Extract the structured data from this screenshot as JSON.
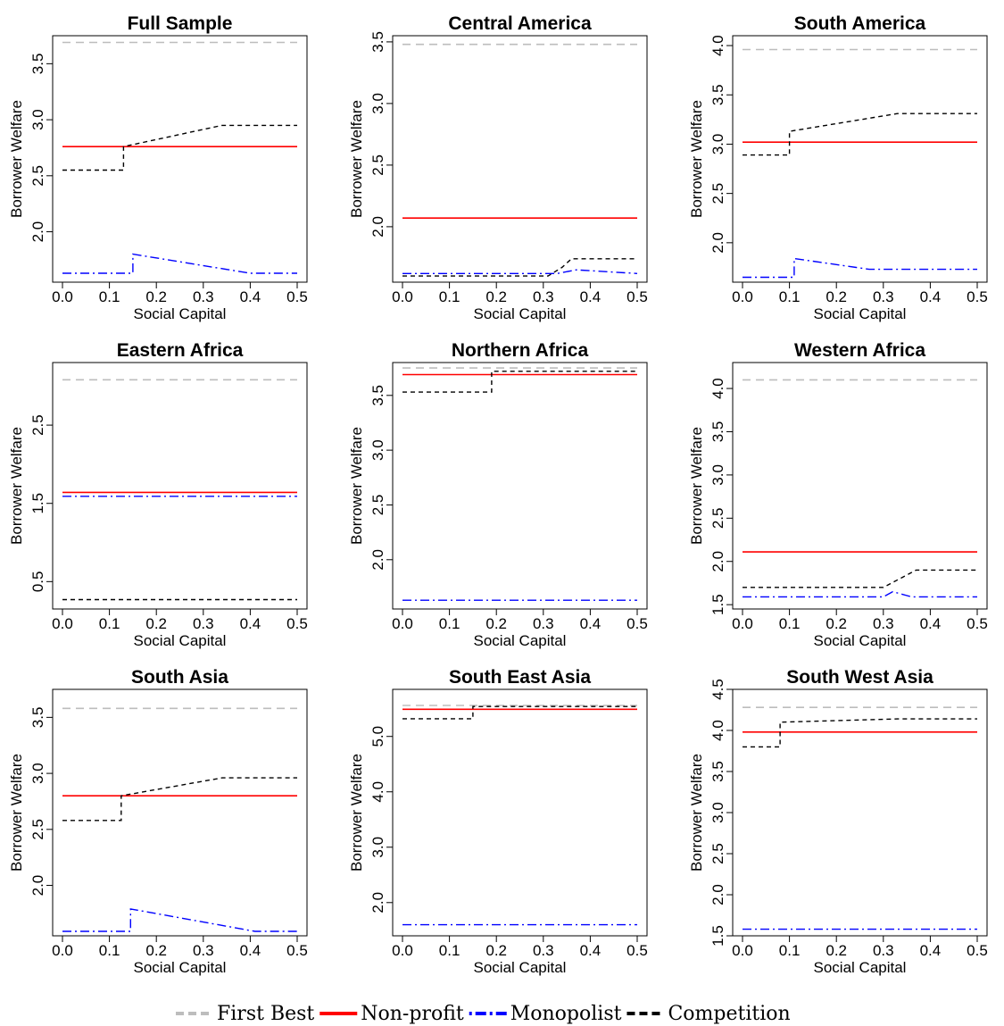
{
  "legend": {
    "items": [
      {
        "label": "First Best",
        "color": "#bdbdbd",
        "dash": "dashed"
      },
      {
        "label": "Non-profit",
        "color": "#ff0000",
        "dash": "solid"
      },
      {
        "label": "Monopolist",
        "color": "#0000ff",
        "dash": "dotdash"
      },
      {
        "label": "Competition",
        "color": "#000000",
        "dash": "dashed"
      }
    ]
  },
  "chart_data": [
    {
      "type": "line",
      "title": "Full Sample",
      "xlabel": "Social Capital",
      "ylabel": "Borrower Welfare",
      "xlim": [
        0,
        0.5
      ],
      "ylim": [
        1.55,
        3.75
      ],
      "xticks": [
        "0.0",
        "0.1",
        "0.2",
        "0.3",
        "0.4",
        "0.5"
      ],
      "yticks": [
        "2.0",
        "2.5",
        "3.0",
        "3.5"
      ],
      "series": [
        {
          "name": "First Best",
          "x": [
            0,
            0.5
          ],
          "y": [
            3.69,
            3.69
          ]
        },
        {
          "name": "Non-profit",
          "x": [
            0,
            0.5
          ],
          "y": [
            2.76,
            2.76
          ]
        },
        {
          "name": "Monopolist",
          "x": [
            0,
            0.15,
            0.15,
            0.4,
            0.5
          ],
          "y": [
            1.63,
            1.63,
            1.8,
            1.63,
            1.63
          ]
        },
        {
          "name": "Competition",
          "x": [
            0,
            0.13,
            0.13,
            0.34,
            0.5
          ],
          "y": [
            2.55,
            2.55,
            2.76,
            2.95,
            2.95
          ]
        }
      ]
    },
    {
      "type": "line",
      "title": "Central America",
      "xlabel": "Social Capital",
      "ylabel": "Borrower Welfare",
      "xlim": [
        0,
        0.5
      ],
      "ylim": [
        1.55,
        3.55
      ],
      "xticks": [
        "0.0",
        "0.1",
        "0.2",
        "0.3",
        "0.4",
        "0.5"
      ],
      "yticks": [
        "2.0",
        "2.5",
        "3.0",
        "3.5"
      ],
      "series": [
        {
          "name": "First Best",
          "x": [
            0,
            0.5
          ],
          "y": [
            3.48,
            3.48
          ]
        },
        {
          "name": "Non-profit",
          "x": [
            0,
            0.5
          ],
          "y": [
            2.07,
            2.07
          ]
        },
        {
          "name": "Monopolist",
          "x": [
            0,
            0.33,
            0.37,
            0.5
          ],
          "y": [
            1.62,
            1.62,
            1.65,
            1.62
          ]
        },
        {
          "name": "Competition",
          "x": [
            0,
            0.31,
            0.34,
            0.36,
            0.5
          ],
          "y": [
            1.6,
            1.6,
            1.67,
            1.74,
            1.74
          ]
        }
      ]
    },
    {
      "type": "line",
      "title": "South America",
      "xlabel": "Social Capital",
      "ylabel": "Borrower Welfare",
      "xlim": [
        0,
        0.5
      ],
      "ylim": [
        1.6,
        4.1
      ],
      "xticks": [
        "0.0",
        "0.1",
        "0.2",
        "0.3",
        "0.4",
        "0.5"
      ],
      "yticks": [
        "2.0",
        "2.5",
        "3.0",
        "3.5",
        "4.0"
      ],
      "series": [
        {
          "name": "First Best",
          "x": [
            0,
            0.5
          ],
          "y": [
            3.96,
            3.96
          ]
        },
        {
          "name": "Non-profit",
          "x": [
            0,
            0.5
          ],
          "y": [
            3.02,
            3.02
          ]
        },
        {
          "name": "Monopolist",
          "x": [
            0,
            0.11,
            0.11,
            0.27,
            0.5
          ],
          "y": [
            1.65,
            1.65,
            1.84,
            1.73,
            1.73
          ]
        },
        {
          "name": "Competition",
          "x": [
            0,
            0.1,
            0.1,
            0.33,
            0.5
          ],
          "y": [
            2.89,
            2.89,
            3.13,
            3.31,
            3.31
          ]
        }
      ]
    },
    {
      "type": "line",
      "title": "Eastern Africa",
      "xlabel": "Social Capital",
      "ylabel": "Borrower Welfare",
      "xlim": [
        0,
        0.5
      ],
      "ylim": [
        0.15,
        3.3
      ],
      "xticks": [
        "0.0",
        "0.1",
        "0.2",
        "0.3",
        "0.4",
        "0.5"
      ],
      "yticks": [
        "0.5",
        "1.5",
        "2.5"
      ],
      "series": [
        {
          "name": "First Best",
          "x": [
            0,
            0.5
          ],
          "y": [
            3.08,
            3.08
          ]
        },
        {
          "name": "Non-profit",
          "x": [
            0,
            0.5
          ],
          "y": [
            1.64,
            1.64
          ]
        },
        {
          "name": "Monopolist",
          "x": [
            0,
            0.5
          ],
          "y": [
            1.59,
            1.59
          ]
        },
        {
          "name": "Competition",
          "x": [
            0,
            0.5
          ],
          "y": [
            0.27,
            0.27
          ]
        }
      ]
    },
    {
      "type": "line",
      "title": "Northern Africa",
      "xlabel": "Social Capital",
      "ylabel": "Borrower Welfare",
      "xlim": [
        0,
        0.5
      ],
      "ylim": [
        1.55,
        3.8
      ],
      "xticks": [
        "0.0",
        "0.1",
        "0.2",
        "0.3",
        "0.4",
        "0.5"
      ],
      "yticks": [
        "2.0",
        "2.5",
        "3.0",
        "3.5"
      ],
      "series": [
        {
          "name": "First Best",
          "x": [
            0,
            0.5
          ],
          "y": [
            3.75,
            3.75
          ]
        },
        {
          "name": "Non-profit",
          "x": [
            0,
            0.5
          ],
          "y": [
            3.69,
            3.69
          ]
        },
        {
          "name": "Monopolist",
          "x": [
            0,
            0.5
          ],
          "y": [
            1.63,
            1.63
          ]
        },
        {
          "name": "Competition",
          "x": [
            0,
            0.19,
            0.19,
            0.5
          ],
          "y": [
            3.53,
            3.53,
            3.72,
            3.72
          ]
        }
      ]
    },
    {
      "type": "line",
      "title": "Western Africa",
      "xlabel": "Social Capital",
      "ylabel": "Borrower Welfare",
      "xlim": [
        0,
        0.5
      ],
      "ylim": [
        1.45,
        4.3
      ],
      "xticks": [
        "0.0",
        "0.1",
        "0.2",
        "0.3",
        "0.4",
        "0.5"
      ],
      "yticks": [
        "1.5",
        "2.0",
        "2.5",
        "3.0",
        "3.5",
        "4.0"
      ],
      "series": [
        {
          "name": "First Best",
          "x": [
            0,
            0.5
          ],
          "y": [
            4.1,
            4.1
          ]
        },
        {
          "name": "Non-profit",
          "x": [
            0,
            0.5
          ],
          "y": [
            2.11,
            2.11
          ]
        },
        {
          "name": "Monopolist",
          "x": [
            0,
            0.3,
            0.32,
            0.36,
            0.5
          ],
          "y": [
            1.59,
            1.59,
            1.65,
            1.59,
            1.59
          ]
        },
        {
          "name": "Competition",
          "x": [
            0,
            0.3,
            0.37,
            0.5
          ],
          "y": [
            1.7,
            1.7,
            1.9,
            1.9
          ]
        }
      ]
    },
    {
      "type": "line",
      "title": "South Asia",
      "xlabel": "Social Capital",
      "ylabel": "Borrower Welfare",
      "xlim": [
        0,
        0.5
      ],
      "ylim": [
        1.55,
        3.75
      ],
      "xticks": [
        "0.0",
        "0.1",
        "0.2",
        "0.3",
        "0.4",
        "0.5"
      ],
      "yticks": [
        "2.0",
        "2.5",
        "3.0",
        "3.5"
      ],
      "series": [
        {
          "name": "First Best",
          "x": [
            0,
            0.5
          ],
          "y": [
            3.58,
            3.58
          ]
        },
        {
          "name": "Non-profit",
          "x": [
            0,
            0.5
          ],
          "y": [
            2.8,
            2.8
          ]
        },
        {
          "name": "Monopolist",
          "x": [
            0,
            0.145,
            0.145,
            0.41,
            0.5
          ],
          "y": [
            1.59,
            1.59,
            1.79,
            1.59,
            1.59
          ]
        },
        {
          "name": "Competition",
          "x": [
            0,
            0.125,
            0.125,
            0.34,
            0.5
          ],
          "y": [
            2.58,
            2.58,
            2.8,
            2.96,
            2.96
          ]
        }
      ]
    },
    {
      "type": "line",
      "title": "South East Asia",
      "xlabel": "Social Capital",
      "ylabel": "Borrower Welfare",
      "xlim": [
        0,
        0.5
      ],
      "ylim": [
        1.4,
        5.85
      ],
      "xticks": [
        "0.0",
        "0.1",
        "0.2",
        "0.3",
        "0.4",
        "0.5"
      ],
      "yticks": [
        "2.0",
        "3.0",
        "4.0",
        "5.0"
      ],
      "series": [
        {
          "name": "First Best",
          "x": [
            0,
            0.5
          ],
          "y": [
            5.56,
            5.56
          ]
        },
        {
          "name": "Non-profit",
          "x": [
            0,
            0.5
          ],
          "y": [
            5.49,
            5.49
          ]
        },
        {
          "name": "Monopolist",
          "x": [
            0,
            0.5
          ],
          "y": [
            1.6,
            1.6
          ]
        },
        {
          "name": "Competition",
          "x": [
            0,
            0.15,
            0.15,
            0.5
          ],
          "y": [
            5.32,
            5.32,
            5.54,
            5.54
          ]
        }
      ]
    },
    {
      "type": "line",
      "title": "South West Asia",
      "xlabel": "Social Capital",
      "ylabel": "Borrower Welfare",
      "xlim": [
        0,
        0.5
      ],
      "ylim": [
        1.5,
        4.5
      ],
      "xticks": [
        "0.0",
        "0.1",
        "0.2",
        "0.3",
        "0.4",
        "0.5"
      ],
      "yticks": [
        "1.5",
        "2.0",
        "2.5",
        "3.0",
        "3.5",
        "4.0",
        "4.5"
      ],
      "series": [
        {
          "name": "First Best",
          "x": [
            0,
            0.5
          ],
          "y": [
            4.28,
            4.28
          ]
        },
        {
          "name": "Non-profit",
          "x": [
            0,
            0.5
          ],
          "y": [
            3.98,
            3.98
          ]
        },
        {
          "name": "Monopolist",
          "x": [
            0,
            0.5
          ],
          "y": [
            1.58,
            1.58
          ]
        },
        {
          "name": "Competition",
          "x": [
            0,
            0.08,
            0.08,
            0.33,
            0.5
          ],
          "y": [
            3.8,
            3.8,
            4.1,
            4.14,
            4.14
          ]
        }
      ]
    }
  ]
}
